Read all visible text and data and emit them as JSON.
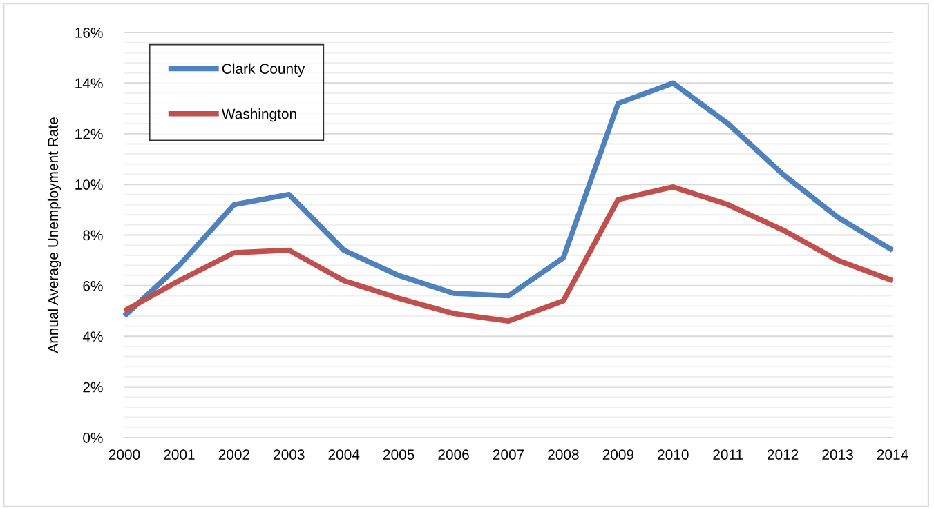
{
  "chart_data": {
    "type": "line",
    "ylabel": "Annual Average Unemployment Rate",
    "x": [
      2000,
      2001,
      2002,
      2003,
      2004,
      2005,
      2006,
      2007,
      2008,
      2009,
      2010,
      2011,
      2012,
      2013,
      2014
    ],
    "series": [
      {
        "name": "Clark County",
        "color": "#4f81bd",
        "values": [
          4.8,
          6.8,
          9.2,
          9.6,
          7.4,
          6.4,
          5.7,
          5.6,
          7.1,
          13.2,
          14.0,
          12.4,
          10.4,
          8.7,
          7.4
        ]
      },
      {
        "name": "Washington",
        "color": "#c0504d",
        "values": [
          5.0,
          6.2,
          7.3,
          7.4,
          6.2,
          5.5,
          4.9,
          4.6,
          5.4,
          9.4,
          9.9,
          9.2,
          8.2,
          7.0,
          6.2
        ]
      }
    ],
    "xlim": [
      2000,
      2014
    ],
    "xticks": [
      2000,
      2001,
      2002,
      2003,
      2004,
      2005,
      2006,
      2007,
      2008,
      2009,
      2010,
      2011,
      2012,
      2013,
      2014
    ],
    "ylim": [
      0,
      16
    ],
    "yticks": [
      {
        "value": 0,
        "label": "0%"
      },
      {
        "value": 2,
        "label": "2%"
      },
      {
        "value": 4,
        "label": "4%"
      },
      {
        "value": 6,
        "label": "6%"
      },
      {
        "value": 8,
        "label": "8%"
      },
      {
        "value": 10,
        "label": "10%"
      },
      {
        "value": 12,
        "label": "12%"
      },
      {
        "value": 14,
        "label": "14%"
      },
      {
        "value": 16,
        "label": "16%"
      }
    ],
    "grid": "y",
    "legend": "top left",
    "marker": "none",
    "line_style": "solid"
  }
}
